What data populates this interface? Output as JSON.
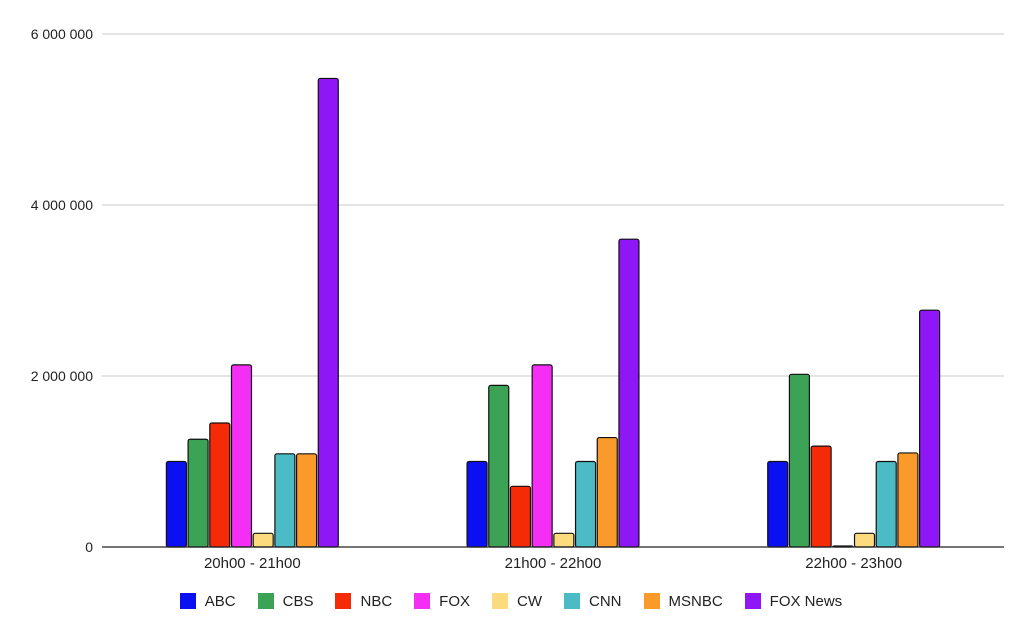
{
  "chart_data": {
    "type": "bar",
    "title": "",
    "xlabel": "",
    "ylabel": "",
    "categories": [
      "20h00 - 21h00",
      "21h00 - 22h00",
      "22h00 - 23h00"
    ],
    "y_ticks": [
      0,
      2000000,
      4000000,
      6000000
    ],
    "y_tick_labels": [
      "0",
      "2 000 000",
      "4 000 000",
      "6 000 000"
    ],
    "ylim": [
      0,
      6000000
    ],
    "grid": true,
    "legend_position": "bottom",
    "series": [
      {
        "name": "ABC",
        "color": "#0b10f2",
        "values": [
          1000000,
          1000000,
          1000000
        ]
      },
      {
        "name": "CBS",
        "color": "#3ca356",
        "values": [
          1260000,
          1890000,
          2020000
        ]
      },
      {
        "name": "NBC",
        "color": "#f52a06",
        "values": [
          1450000,
          710000,
          1180000
        ]
      },
      {
        "name": "FOX",
        "color": "#f42ef5",
        "values": [
          2130000,
          2130000,
          10000
        ]
      },
      {
        "name": "CW",
        "color": "#fcdb7e",
        "values": [
          160000,
          160000,
          160000
        ]
      },
      {
        "name": "CNN",
        "color": "#4bbbc6",
        "values": [
          1090000,
          1000000,
          1000000
        ]
      },
      {
        "name": "MSNBC",
        "color": "#f99a2b",
        "values": [
          1090000,
          1280000,
          1100000
        ]
      },
      {
        "name": "FOX News",
        "color": "#9017f5",
        "values": [
          5480000,
          3600000,
          2770000
        ]
      }
    ]
  }
}
